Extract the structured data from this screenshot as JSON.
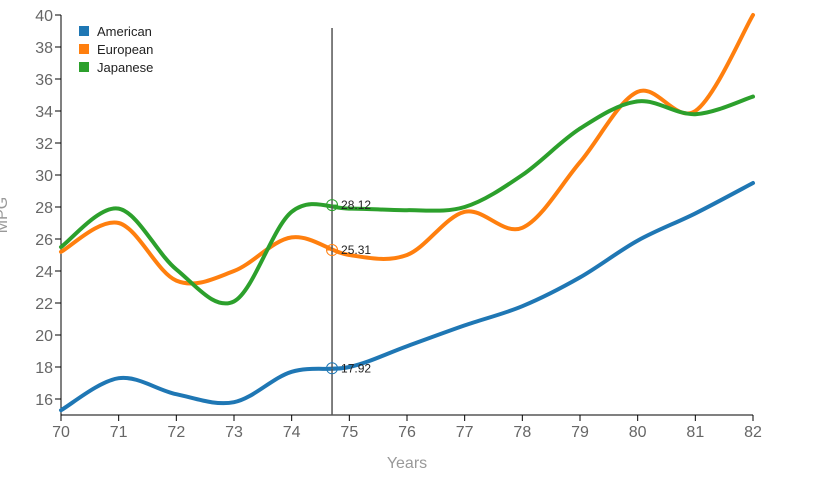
{
  "chart_data": {
    "type": "line",
    "xlabel": "Years",
    "ylabel": "MPG",
    "xlim": [
      70,
      82
    ],
    "ylim": [
      15,
      40
    ],
    "x_ticks": [
      70,
      71,
      72,
      73,
      74,
      75,
      76,
      77,
      78,
      79,
      80,
      81,
      82
    ],
    "y_ticks": [
      16,
      18,
      20,
      22,
      24,
      26,
      28,
      30,
      32,
      34,
      36,
      38,
      40
    ],
    "x": [
      70,
      71,
      72,
      73,
      74,
      75,
      76,
      77,
      78,
      79,
      80,
      81,
      82
    ],
    "series": [
      {
        "name": "American",
        "color": "#1f77b4",
        "values": [
          15.3,
          17.3,
          16.3,
          15.8,
          17.7,
          18.0,
          19.3,
          20.6,
          21.8,
          23.6,
          25.9,
          27.6,
          29.5
        ]
      },
      {
        "name": "European",
        "color": "#ff7f0e",
        "values": [
          25.2,
          27.0,
          23.4,
          24.0,
          26.1,
          25.0,
          25.0,
          27.7,
          26.7,
          30.8,
          35.2,
          34.0,
          40.0
        ]
      },
      {
        "name": "Japanese",
        "color": "#2ca02c",
        "values": [
          25.5,
          27.9,
          24.1,
          22.1,
          27.7,
          27.9,
          27.8,
          28.0,
          30.0,
          32.9,
          34.6,
          33.8,
          34.9
        ]
      }
    ],
    "legend_position": "top-left",
    "grid": false,
    "hover": {
      "x": 74.7,
      "labels": [
        {
          "series": "American",
          "value": 17.92,
          "text": "17.92"
        },
        {
          "series": "European",
          "value": 25.31,
          "text": "25.31"
        },
        {
          "series": "Japanese",
          "value": 28.12,
          "text": "28.12"
        }
      ]
    }
  }
}
